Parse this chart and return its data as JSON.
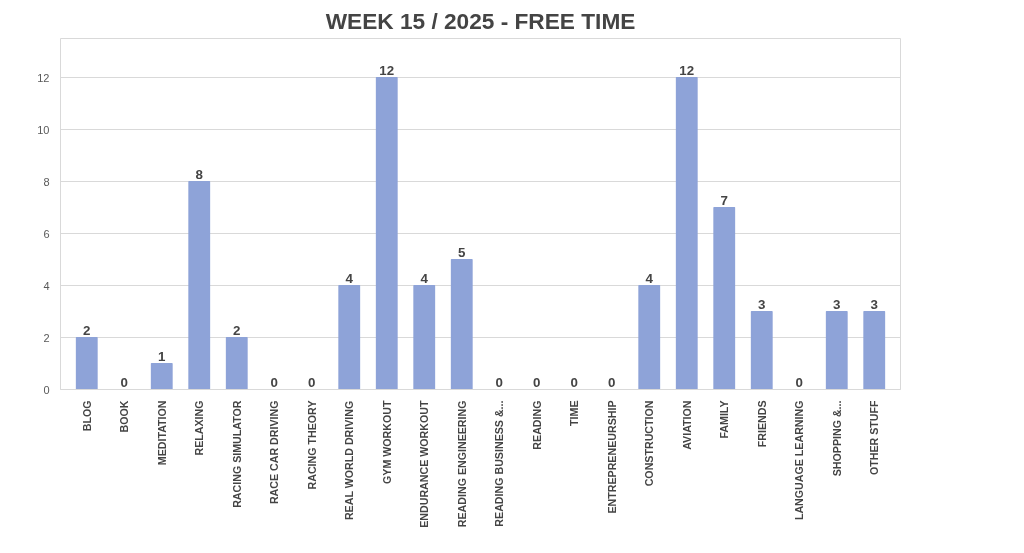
{
  "chart_data": {
    "type": "bar",
    "title": "WEEK 15 / 2025 - FREE TIME",
    "categories": [
      "BLOG",
      "BOOK",
      "MEDITATION",
      "RELAXING",
      "RACING SIMULATOR",
      "RACE CAR DRIVING",
      "RACING THEORY",
      "REAL WORLD DRIVING",
      "GYM WORKOUT",
      "ENDURANCE WORKOUT",
      "READING ENGINEERING",
      "READING BUSINESS &...",
      "READING",
      "TIME",
      "ENTREPRENEURSHIP",
      "CONSTRUCTION",
      "AVIATION",
      "FAMILY",
      "FRIENDS",
      "LANGUAGE LEARNING",
      "SHOPPING &...",
      "OTHER STUFF"
    ],
    "values": [
      2,
      0,
      1,
      8,
      2,
      0,
      0,
      4,
      12,
      4,
      5,
      0,
      0,
      0,
      0,
      4,
      12,
      7,
      3,
      0,
      3,
      3
    ],
    "color": "#8ea3d8",
    "ylim": [
      0,
      13.5
    ],
    "yticks": [
      0,
      2,
      4,
      6,
      8,
      10,
      12
    ],
    "grid": "y",
    "data_labels": true
  }
}
